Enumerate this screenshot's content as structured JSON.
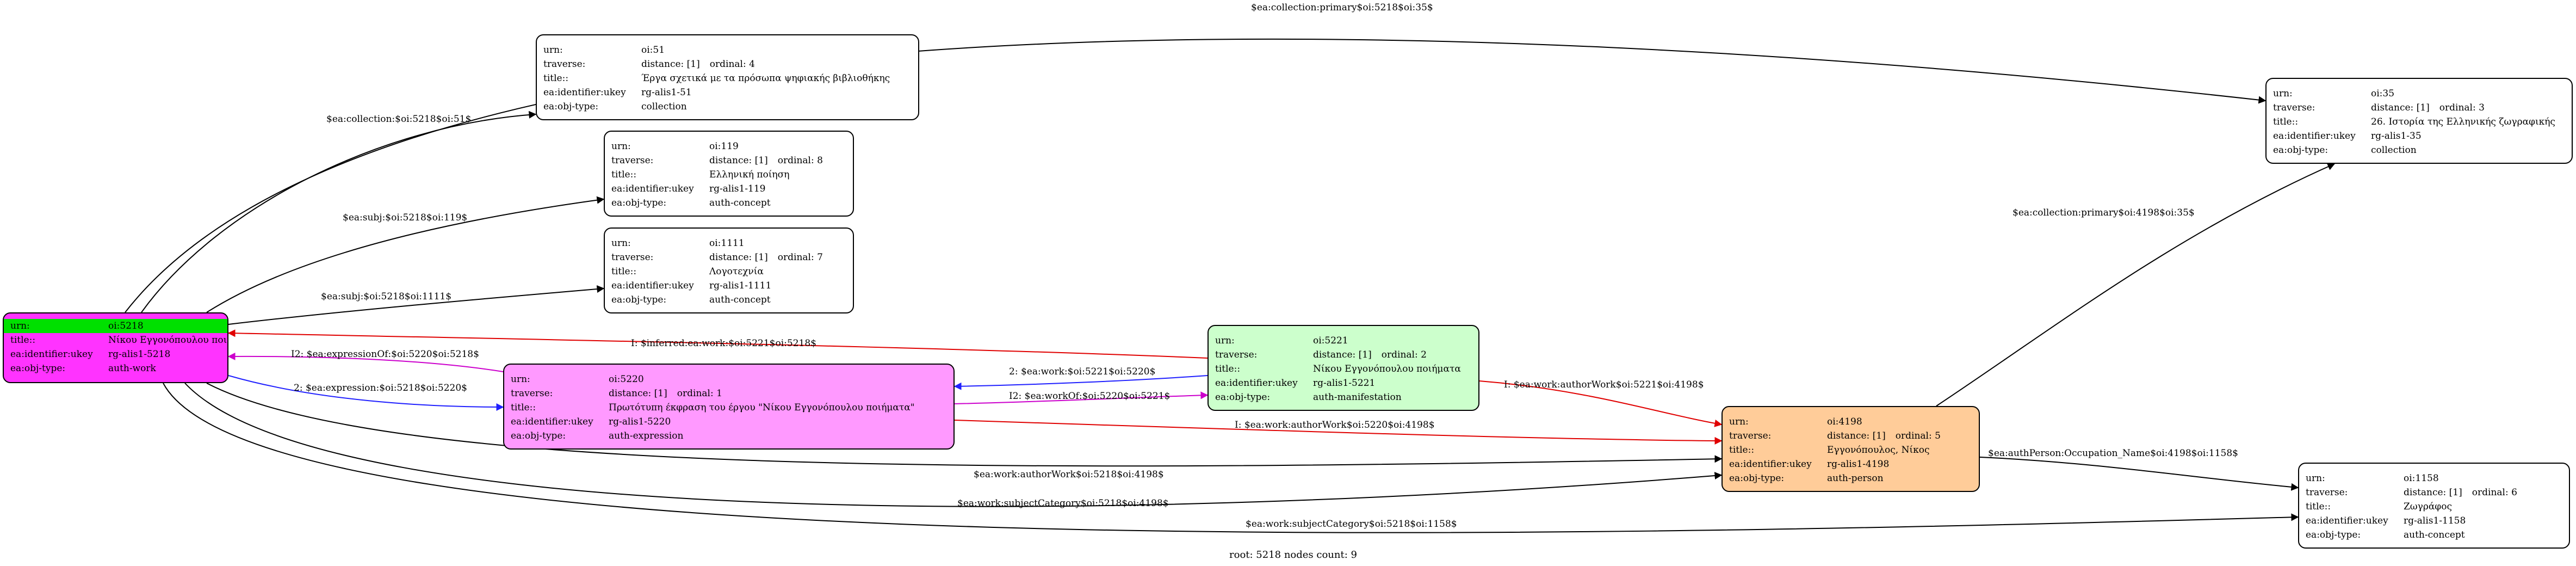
{
  "colors": {
    "root_fill": "#ff33ff",
    "root_head": "#00e000",
    "expression_fill": "#ff99ff",
    "manifestation_fill": "#ccffcc",
    "person_fill": "#ffcc99",
    "default_fill": "#ffffff",
    "edge_black": "#000000",
    "edge_red": "#e00000",
    "edge_blue": "#2020ff",
    "edge_magenta": "#cc00cc"
  },
  "labels": {
    "urn": "urn:",
    "traverse": "traverse:",
    "title": "title::",
    "ukey": "ea:identifier:ukey",
    "objtype": "ea:obj-type:"
  },
  "nodes": {
    "root": {
      "urn": "oi:5218",
      "title": "Νίκου Εγγονόπουλου ποιήματα",
      "ukey": "rg-alis1-5218",
      "objtype": "auth-work"
    },
    "n51": {
      "urn": "oi:51",
      "distance": "distance: [1]",
      "ordinal": "ordinal: 4",
      "title": "Έργα σχετικά με τα πρόσωπα ψηφιακής βιβλιοθήκης",
      "ukey": "rg-alis1-51",
      "objtype": "collection"
    },
    "n119": {
      "urn": "oi:119",
      "distance": "distance: [1]",
      "ordinal": "ordinal: 8",
      "title": "Ελληνική ποίηση",
      "ukey": "rg-alis1-119",
      "objtype": "auth-concept"
    },
    "n1111": {
      "urn": "oi:1111",
      "distance": "distance: [1]",
      "ordinal": "ordinal: 7",
      "title": "Λογοτεχνία",
      "ukey": "rg-alis1-1111",
      "objtype": "auth-concept"
    },
    "n5220": {
      "urn": "oi:5220",
      "distance": "distance: [1]",
      "ordinal": "ordinal: 1",
      "title": "Πρωτότυπη έκφραση του έργου \"Νίκου Εγγονόπουλου ποιήματα\"",
      "ukey": "rg-alis1-5220",
      "objtype": "auth-expression"
    },
    "n5221": {
      "urn": "oi:5221",
      "distance": "distance: [1]",
      "ordinal": "ordinal: 2",
      "title": "Νίκου Εγγονόπουλου ποιήματα",
      "ukey": "rg-alis1-5221",
      "objtype": "auth-manifestation"
    },
    "n4198": {
      "urn": "oi:4198",
      "distance": "distance: [1]",
      "ordinal": "ordinal: 5",
      "title": "Εγγονόπουλος, Νίκος",
      "ukey": "rg-alis1-4198",
      "objtype": "auth-person"
    },
    "n35": {
      "urn": "oi:35",
      "distance": "distance: [1]",
      "ordinal": "ordinal: 3",
      "title": "26. Ιστορία της Ελληνικής ζωγραφικής",
      "ukey": "rg-alis1-35",
      "objtype": "collection"
    },
    "n1158": {
      "urn": "oi:1158",
      "distance": "distance: [1]",
      "ordinal": "ordinal: 6",
      "title": "Ζωγράφος",
      "ukey": "rg-alis1-1158",
      "objtype": "auth-concept"
    }
  },
  "edges": [
    {
      "from": "root",
      "to": "n35",
      "label": "$ea:collection:primary$oi:5218$oi:35$",
      "color": "black"
    },
    {
      "from": "root",
      "to": "n51",
      "label": "$ea:collection:$oi:5218$oi:51$",
      "color": "black"
    },
    {
      "from": "root",
      "to": "n119",
      "label": "$ea:subj:$oi:5218$oi:119$",
      "color": "black"
    },
    {
      "from": "root",
      "to": "n1111",
      "label": "$ea:subj:$oi:5218$oi:1111$",
      "color": "black"
    },
    {
      "from": "n5220",
      "to": "root",
      "label": "I2: $ea:expressionOf:$oi:5220$oi:5218$",
      "color": "magenta"
    },
    {
      "from": "root",
      "to": "n5220",
      "label": "2: $ea:expression:$oi:5218$oi:5220$",
      "color": "blue"
    },
    {
      "from": "n5221",
      "to": "root",
      "label": "I: $inferred:ea:work:$oi:5221$oi:5218$",
      "color": "red"
    },
    {
      "from": "n5221",
      "to": "n5220",
      "label": "2: $ea:work:$oi:5221$oi:5220$",
      "color": "blue"
    },
    {
      "from": "n5220",
      "to": "n5221",
      "label": "I2: $ea:workOf:$oi:5220$oi:5221$",
      "color": "magenta"
    },
    {
      "from": "n5221",
      "to": "n4198",
      "label": "I: $ea:work:authorWork$oi:5221$oi:4198$",
      "color": "red"
    },
    {
      "from": "n5220",
      "to": "n4198",
      "label": "I: $ea:work:authorWork$oi:5220$oi:4198$",
      "color": "red"
    },
    {
      "from": "root",
      "to": "n4198",
      "label": "$ea:work:authorWork$oi:5218$oi:4198$",
      "color": "black"
    },
    {
      "from": "root",
      "to": "n4198",
      "label": "$ea:work:subjectCategory$oi:5218$oi:4198$",
      "color": "black"
    },
    {
      "from": "root",
      "to": "n1158",
      "label": "$ea:work:subjectCategory$oi:5218$oi:1158$",
      "color": "black"
    },
    {
      "from": "n4198",
      "to": "n35",
      "label": "$ea:collection:primary$oi:4198$oi:35$",
      "color": "black"
    },
    {
      "from": "n4198",
      "to": "n1158",
      "label": "$ea:authPerson:Occupation_Name$oi:4198$oi:1158$",
      "color": "black"
    }
  ],
  "caption": "root: 5218 nodes count: 9"
}
